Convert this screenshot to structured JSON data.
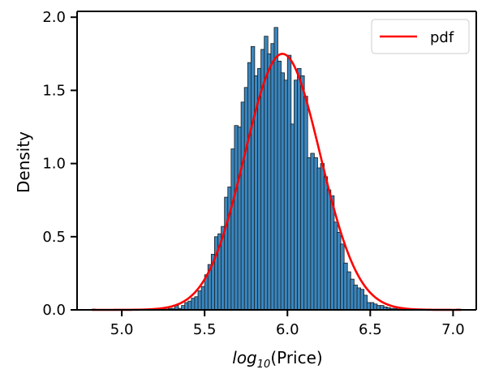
{
  "chart_data": {
    "type": "bar",
    "xlabel": "log10(Price)",
    "xlabel_parts": {
      "base": "log",
      "sub": "10",
      "rest": "(Price)"
    },
    "ylabel": "Density",
    "xlim": [
      4.73,
      7.14
    ],
    "ylim": [
      0,
      2.04
    ],
    "x_ticks": [
      5.0,
      5.5,
      6.0,
      6.5,
      7.0
    ],
    "x_tick_labels": [
      "5.0",
      "5.5",
      "6.0",
      "6.5",
      "7.0"
    ],
    "y_ticks": [
      0.0,
      0.5,
      1.0,
      1.5,
      2.0
    ],
    "y_tick_labels": [
      "0.0",
      "0.5",
      "1.0",
      "1.5",
      "2.0"
    ],
    "grid": false,
    "legend": {
      "position": "top-right",
      "entries": [
        {
          "label": "pdf",
          "color": "#ff0000"
        }
      ]
    },
    "histogram": {
      "color": "#3a86be",
      "edge_color": "#1a1a1a",
      "bin_starts": [
        4.82,
        4.84,
        4.86,
        4.88,
        4.9,
        4.92,
        4.94,
        4.96,
        4.98,
        5.0,
        5.02,
        5.04,
        5.06,
        5.08,
        5.1,
        5.12,
        5.14,
        5.16,
        5.18,
        5.2,
        5.22,
        5.24,
        5.26,
        5.28,
        5.3,
        5.32,
        5.34,
        5.36,
        5.38,
        5.4,
        5.42,
        5.44,
        5.46,
        5.48,
        5.5,
        5.52,
        5.54,
        5.56,
        5.58,
        5.6,
        5.62,
        5.64,
        5.66,
        5.68,
        5.7,
        5.72,
        5.74,
        5.76,
        5.78,
        5.8,
        5.82,
        5.84,
        5.86,
        5.88,
        5.9,
        5.92,
        5.94,
        5.96,
        5.98,
        6.0,
        6.02,
        6.04,
        6.06,
        6.08,
        6.1,
        6.12,
        6.14,
        6.16,
        6.18,
        6.2,
        6.22,
        6.24,
        6.26,
        6.28,
        6.3,
        6.32,
        6.34,
        6.36,
        6.38,
        6.4,
        6.42,
        6.44,
        6.46,
        6.48,
        6.5,
        6.52,
        6.54,
        6.56,
        6.58,
        6.6,
        6.62,
        6.64,
        6.66,
        6.68,
        6.7,
        6.72,
        6.74,
        6.76,
        6.78,
        6.8,
        6.82,
        6.84,
        6.86,
        6.88,
        6.9,
        6.92,
        6.94,
        6.96,
        6.98,
        7.0,
        7.02
      ],
      "bin_width": 0.0222,
      "values": [
        0.005,
        0.0,
        0.0,
        0.0,
        0.0,
        0.0,
        0.0,
        0.0,
        0.0,
        0.0,
        0.0,
        0.0,
        0.0,
        0.0,
        0.0,
        0.0,
        0.0,
        0.0,
        0.0,
        0.005,
        0.005,
        0.005,
        0.005,
        0.01,
        0.01,
        0.03,
        0.01,
        0.03,
        0.05,
        0.06,
        0.08,
        0.09,
        0.13,
        0.16,
        0.24,
        0.31,
        0.38,
        0.5,
        0.52,
        0.57,
        0.77,
        0.84,
        1.1,
        1.26,
        1.25,
        1.42,
        1.52,
        1.69,
        1.8,
        1.6,
        1.65,
        1.78,
        1.87,
        1.75,
        1.82,
        1.93,
        1.7,
        1.62,
        1.57,
        1.74,
        1.27,
        1.57,
        1.65,
        1.6,
        1.46,
        1.04,
        1.07,
        1.04,
        0.97,
        1.0,
        0.91,
        0.82,
        0.78,
        0.6,
        0.53,
        0.45,
        0.32,
        0.26,
        0.21,
        0.17,
        0.15,
        0.14,
        0.1,
        0.05,
        0.05,
        0.04,
        0.03,
        0.03,
        0.02,
        0.015,
        0.01,
        0.01,
        0.005,
        0.005,
        0.005,
        0.0,
        0.0,
        0.0,
        0.0,
        0.0,
        0.0,
        0.0,
        0.0,
        0.0,
        0.0,
        0.0,
        0.0,
        0.0,
        0.0,
        0.0,
        0.005
      ]
    },
    "pdf_curve": {
      "name": "pdf",
      "color": "#ff0000",
      "x_start": 4.82,
      "x_end": 7.05,
      "mean": 5.97,
      "std": 0.228
    }
  }
}
